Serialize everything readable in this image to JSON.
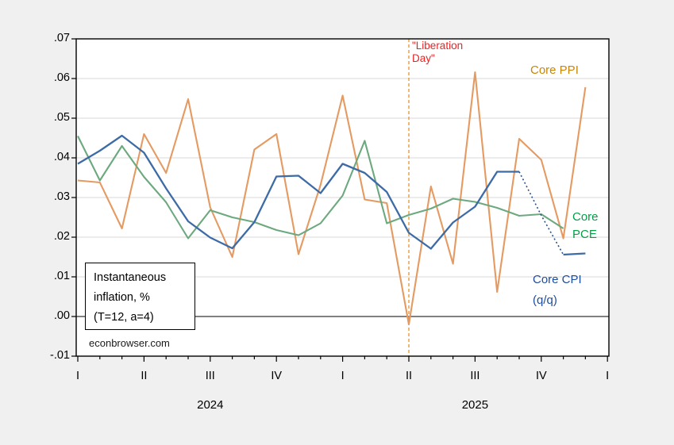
{
  "chart_data": {
    "type": "line",
    "title_box_line1": "Instantaneous",
    "title_box_line2": "inflation, %",
    "title_box_line3": "(T=12, a=4)",
    "watermark": "econbrowser.com",
    "annotation": {
      "label_line1": "\"Liberation",
      "label_line2": "Day\"",
      "label_color": "#ed2224",
      "line_color": "#e8912d",
      "line_month_index": 15
    },
    "x_axis": {
      "months_start": "2024-01",
      "n_months": 25,
      "quarter_tick_labels": [
        "I",
        "II",
        "III",
        "IV",
        "I",
        "II",
        "III",
        "IV",
        "I"
      ],
      "year_labels": [
        "2024",
        "2025"
      ],
      "grid": "off"
    },
    "y_axis": {
      "tick_labels": [
        ".07",
        ".06",
        ".05",
        ".04",
        ".03",
        ".02",
        ".01",
        ".00",
        "-.01"
      ],
      "min": -0.01,
      "max": 0.07,
      "step": 0.01,
      "zero_line_color": "#000000",
      "grid_color": "#d8d8d8",
      "grid": "on"
    },
    "series": [
      {
        "name": "Core PPI",
        "label_line1": "Core PPI",
        "label_line2": "",
        "color": "#e59a62",
        "label_color": "#c8860a",
        "values": [
          0.0343,
          0.0338,
          0.0222,
          0.046,
          0.0362,
          0.0548,
          0.0275,
          0.015,
          0.0421,
          0.046,
          0.0157,
          0.0332,
          0.0557,
          0.0295,
          0.0286,
          -0.002,
          0.0328,
          0.0133,
          0.0616,
          0.0062,
          0.0448,
          0.0395,
          0.0197,
          0.0578
        ]
      },
      {
        "name": "Core PCE",
        "label_line1": "Core",
        "label_line2": "PCE",
        "color": "#6ca97e",
        "label_color": "#00a046",
        "values": [
          0.0455,
          0.0343,
          0.043,
          0.0352,
          0.0288,
          0.0197,
          0.0268,
          0.025,
          0.0238,
          0.0218,
          0.0205,
          0.0235,
          0.0305,
          0.0443,
          0.0235,
          0.0256,
          0.0272,
          0.0297,
          0.0289,
          0.0274,
          0.0254,
          0.0258,
          0.0222
        ]
      },
      {
        "name": "Core CPI (q/q)",
        "label_line1": "Core CPI",
        "label_line2": "(q/q)",
        "color": "#3d6ba6",
        "label_color": "#1f4e9b",
        "dotted_from_index": 20,
        "dotted_to_index": 22,
        "values": [
          0.0385,
          0.0418,
          0.0456,
          0.0413,
          0.0323,
          0.024,
          0.0199,
          0.0172,
          0.0238,
          0.0353,
          0.0355,
          0.0311,
          0.0385,
          0.0362,
          0.0314,
          0.0211,
          0.0171,
          0.0237,
          0.0277,
          0.0365,
          0.0365,
          0.0255,
          0.0156,
          0.0159
        ]
      }
    ]
  }
}
